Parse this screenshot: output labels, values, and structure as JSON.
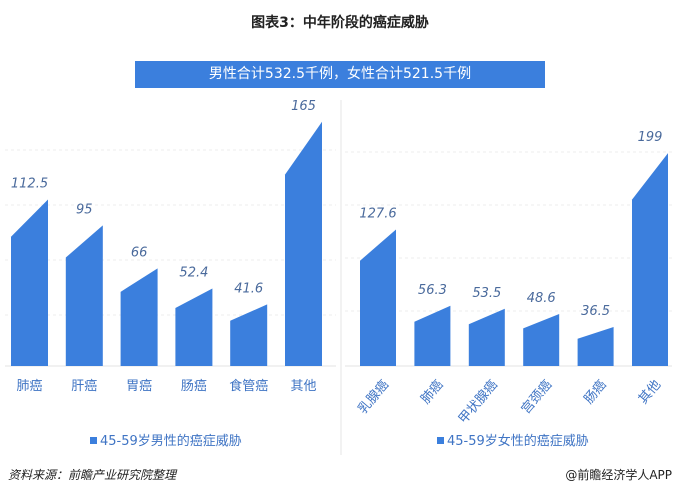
{
  "title": "图表3：中年阶段的癌症威胁",
  "banner": "男性合计532.5千例，女性合计521.5千例",
  "source": "资料来源：前瞻产业研究院整理",
  "credit": "@前瞻经济学人APP",
  "colors": {
    "bar": "#3b7fdd",
    "value_label": "#4a6a9c",
    "category_label": "#3f74c4"
  },
  "chart_data": [
    {
      "type": "bar",
      "categories": [
        "肺癌",
        "肝癌",
        "胃癌",
        "肠癌",
        "食管癌",
        "其他"
      ],
      "values": [
        112.5,
        95,
        66,
        52.4,
        41.6,
        165
      ],
      "legend": "45-59岁男性的癌症威胁",
      "legend_position": "bottom",
      "grid": true
    },
    {
      "type": "bar",
      "categories": [
        "乳腺癌",
        "肺癌",
        "甲状腺癌",
        "宫颈癌",
        "肠癌",
        "其他"
      ],
      "values": [
        127.6,
        56.3,
        53.5,
        48.6,
        36.5,
        199
      ],
      "legend": "45-59岁女性的癌症威胁",
      "legend_position": "bottom",
      "grid": true
    }
  ]
}
